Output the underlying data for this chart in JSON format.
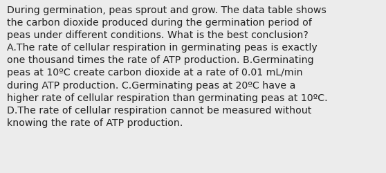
{
  "lines": [
    "During germination, peas sprout and grow. The data table shows",
    "the carbon dioxide produced during the germination period of",
    "peas under different conditions. What is the best conclusion?",
    "A.The rate of cellular respiration in germinating peas is exactly",
    "one thousand times the rate of ATP production. B.Germinating",
    "peas at 10ºC create carbon dioxide at a rate of 0.01 mL/min",
    "during ATP production. C.Germinating peas at 20ºC have a",
    "higher rate of cellular respiration than germinating peas at 10ºC.",
    "D.The rate of cellular respiration cannot be measured without",
    "knowing the rate of ATP production."
  ],
  "background_color": "#ececec",
  "text_color": "#222222",
  "font_size": 10.2,
  "fig_width": 5.58,
  "fig_height": 2.51,
  "dpi": 100
}
